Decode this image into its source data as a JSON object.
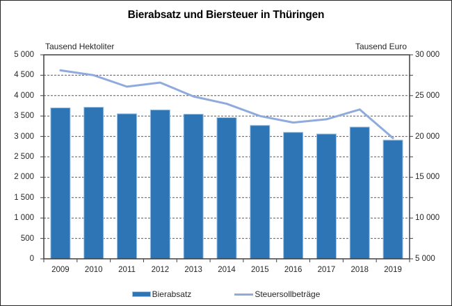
{
  "title": "Bierabsatz und Biersteuer in Thüringen",
  "left_axis_header": "Tausend Hektoliter",
  "right_axis_header": "Tausend Euro",
  "legend": {
    "items": [
      {
        "label": "Bierabsatz",
        "swatch": "bar"
      },
      {
        "label": "Steuersollbeträge",
        "swatch": "line"
      }
    ]
  },
  "colors": {
    "bar_fill": "#2E75B6",
    "bar_border": "#9DC3E6",
    "line": "#8FAADC",
    "grid": "#595959",
    "axis_frame": "#3F3F3F",
    "text": "#262626"
  },
  "chart_data": {
    "type": "bar",
    "title": "Bierabsatz und Biersteuer in Thüringen",
    "categories": [
      "2009",
      "2010",
      "2011",
      "2012",
      "2013",
      "2014",
      "2015",
      "2016",
      "2017",
      "2018",
      "2019"
    ],
    "series": [
      {
        "name": "Bierabsatz",
        "type": "bar",
        "axis": "left",
        "unit": "Tausend Hektoliter",
        "values": [
          3700,
          3715,
          3555,
          3650,
          3545,
          3460,
          3270,
          3100,
          3060,
          3230,
          2910
        ]
      },
      {
        "name": "Steuersollbeträge",
        "type": "line",
        "axis": "right",
        "unit": "Tausend Euro",
        "values": [
          28100,
          27500,
          26100,
          26600,
          24900,
          24000,
          22500,
          21700,
          22100,
          23300,
          19800
        ]
      }
    ],
    "left_axis": {
      "label": "Tausend Hektoliter",
      "min": 0,
      "max": 5000,
      "gridline_step": 500,
      "tick_labels": [
        "0",
        "500",
        "1 000",
        "1 500",
        "2 000",
        "2 500",
        "3 000",
        "3 500",
        "4 000",
        "4 500",
        "5 000"
      ]
    },
    "right_axis": {
      "label": "Tausend Euro",
      "min": 5000,
      "max": 30000,
      "label_step": 5000,
      "tick_labels": [
        "5 000",
        "10 000",
        "15 000",
        "20 000",
        "25 000",
        "30 000"
      ]
    },
    "grid": "horizontal dashed",
    "legend_position": "bottom"
  }
}
